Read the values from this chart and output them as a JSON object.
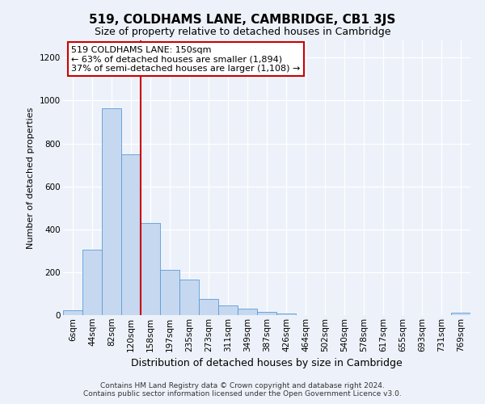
{
  "title": "519, COLDHAMS LANE, CAMBRIDGE, CB1 3JS",
  "subtitle": "Size of property relative to detached houses in Cambridge",
  "xlabel": "Distribution of detached houses by size in Cambridge",
  "ylabel": "Number of detached properties",
  "bar_labels": [
    "6sqm",
    "44sqm",
    "82sqm",
    "120sqm",
    "158sqm",
    "197sqm",
    "235sqm",
    "273sqm",
    "311sqm",
    "349sqm",
    "387sqm",
    "426sqm",
    "464sqm",
    "502sqm",
    "540sqm",
    "578sqm",
    "617sqm",
    "655sqm",
    "693sqm",
    "731sqm",
    "769sqm"
  ],
  "bar_values": [
    22,
    305,
    965,
    750,
    430,
    210,
    165,
    75,
    45,
    32,
    15,
    8,
    0,
    0,
    0,
    0,
    0,
    0,
    0,
    0,
    10
  ],
  "bar_color": "#c5d8f0",
  "bar_edge_color": "#5b9bd5",
  "vline_x_index": 4,
  "vline_color": "#cc0000",
  "annotation_text": "519 COLDHAMS LANE: 150sqm\n← 63% of detached houses are smaller (1,894)\n37% of semi-detached houses are larger (1,108) →",
  "annotation_box_facecolor": "#ffffff",
  "annotation_box_edgecolor": "#cc0000",
  "ylim": [
    0,
    1280
  ],
  "yticks": [
    0,
    200,
    400,
    600,
    800,
    1000,
    1200
  ],
  "footer_text": "Contains HM Land Registry data © Crown copyright and database right 2024.\nContains public sector information licensed under the Open Government Licence v3.0.",
  "bg_color": "#edf2fa",
  "plot_bg_color": "#edf2fa",
  "grid_color": "#ffffff",
  "title_fontsize": 11,
  "subtitle_fontsize": 9,
  "ylabel_fontsize": 8,
  "xlabel_fontsize": 9,
  "tick_fontsize": 7.5,
  "annotation_fontsize": 8,
  "footer_fontsize": 6.5
}
